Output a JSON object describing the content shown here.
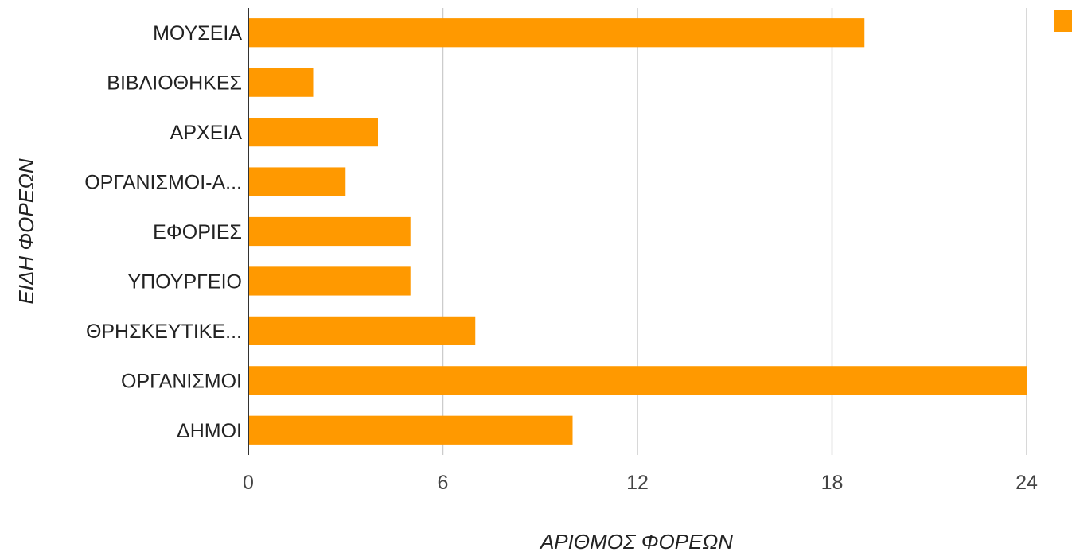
{
  "chart_data": {
    "type": "bar",
    "orientation": "horizontal",
    "categories": [
      "ΜΟΥΣΕΙΑ",
      "ΒΙΒΛΙΟΘΗΚΕΣ",
      "ΑΡΧΕΙΑ",
      "ΟΡΓΑΝΙΣΜΟΙ-Α...",
      "ΕΦΟΡΙΕΣ",
      "ΥΠΟΥΡΓΕΙΟ",
      "ΘΡΗΣΚΕΥΤΙΚΕ...",
      "ΟΡΓΑΝΙΣΜΟΙ",
      "ΔΗΜΟΙ"
    ],
    "values": [
      19,
      2,
      4,
      3,
      5,
      5,
      7,
      24,
      10
    ],
    "xlabel": "ΑΡΙΘΜΟΣ ΦΟΡΕΩΝ",
    "ylabel": "ΕΙΔΗ ΦΟΡΕΩΝ",
    "xlim": [
      0,
      24
    ],
    "xticks": [
      0,
      6,
      12,
      18,
      24
    ],
    "grid": true,
    "legend": "top-right",
    "colors": {
      "bar": "#ff9900",
      "grid": "#cccccc",
      "axis": "#333333"
    }
  }
}
